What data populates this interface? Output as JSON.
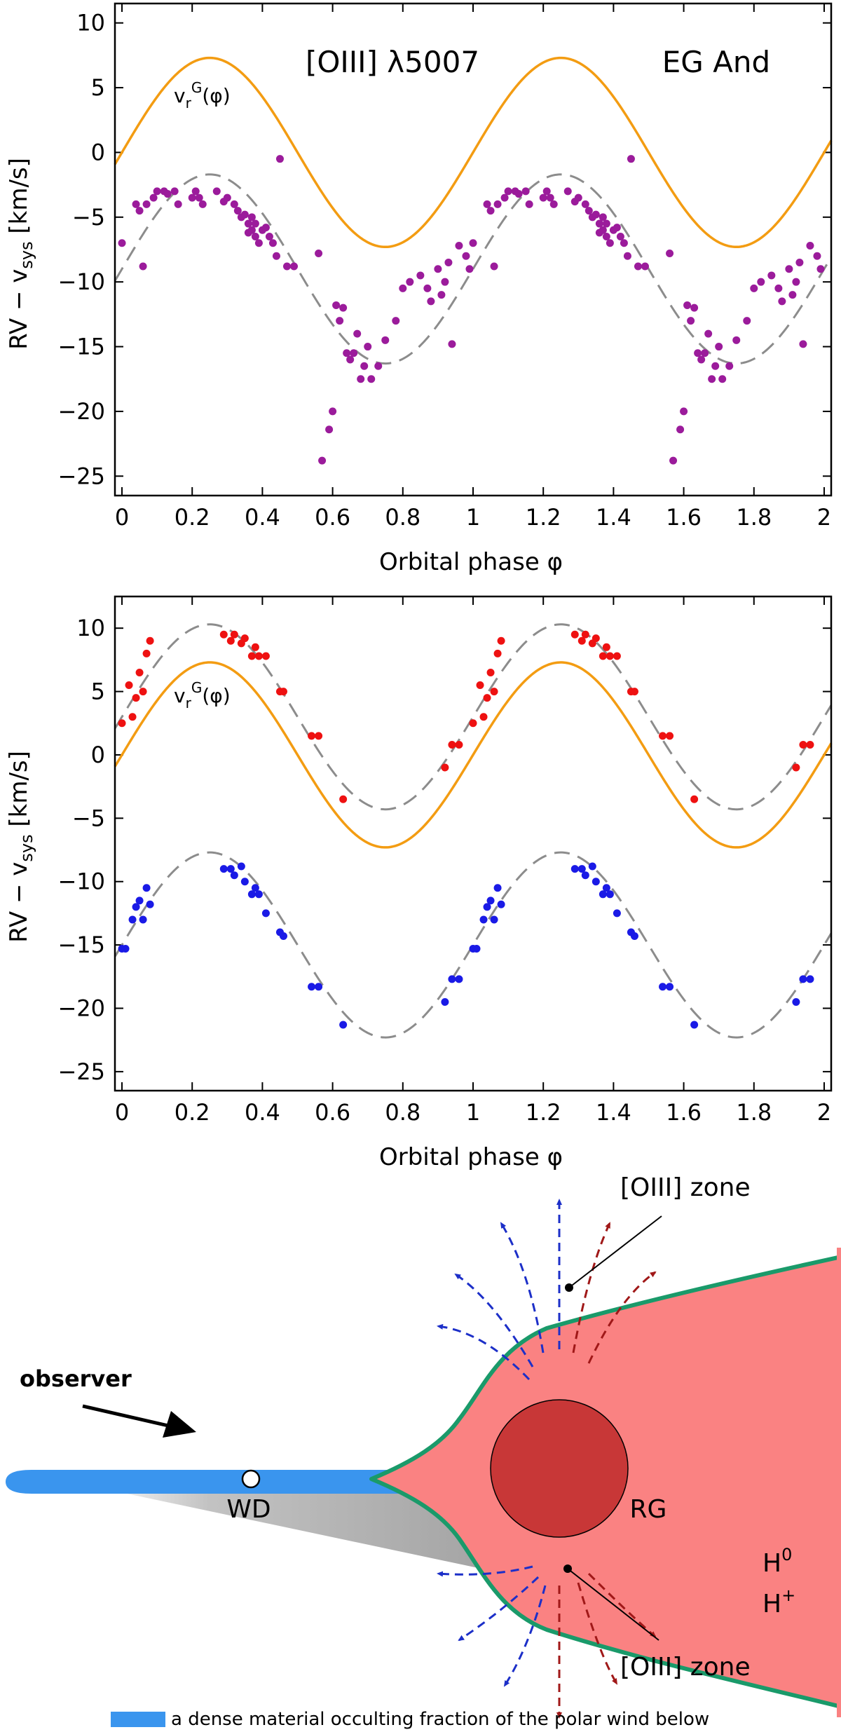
{
  "chart_data": [
    {
      "type": "scatter",
      "title": "[OIII] λ5007",
      "object_label": "EG And",
      "xlabel": "Orbital phase φ",
      "ylabel": "RV − v_sys [km/s]",
      "ylabel_parts": {
        "main": "RV − v",
        "sub": "sys",
        "unit": " [km/s]"
      },
      "xlim": [
        -0.02,
        2.02
      ],
      "ylim": [
        -26.5,
        11.5
      ],
      "xticks": [
        0,
        0.2,
        0.4,
        0.6,
        0.8,
        1,
        1.2,
        1.4,
        1.6,
        1.8,
        2
      ],
      "xtick_labels": [
        "0",
        "0.2",
        "0.4",
        "0.6",
        "0.8",
        "1",
        "1.2",
        "1.4",
        "1.6",
        "1.8",
        "2"
      ],
      "yticks": [
        10,
        5,
        0,
        -5,
        -10,
        -15,
        -20,
        -25
      ],
      "ytick_labels": [
        "10",
        "5",
        "0",
        "−5",
        "−10",
        "−15",
        "−20",
        "−25"
      ],
      "curve_label": {
        "base": "v",
        "sub": "r",
        "sup": "G",
        "arg": "(φ)"
      },
      "curves": [
        {
          "name": "giant orbit vrG(φ)",
          "style": "solid",
          "color": "#f39c12",
          "gamma": 0,
          "amplitude": 7.3
        },
        {
          "name": "fit",
          "style": "dashed",
          "color": "#8c8c8c",
          "gamma": -9.0,
          "amplitude": 7.3
        }
      ],
      "series": [
        {
          "name": "[OIII] λ5007",
          "color": "#9b1b9b",
          "x": [
            0.0,
            0.04,
            0.05,
            0.06,
            0.07,
            0.09,
            0.1,
            0.12,
            0.13,
            0.15,
            0.16,
            0.2,
            0.21,
            0.22,
            0.23,
            0.27,
            0.29,
            0.3,
            0.32,
            0.33,
            0.34,
            0.35,
            0.36,
            0.36,
            0.37,
            0.37,
            0.38,
            0.38,
            0.39,
            0.4,
            0.41,
            0.42,
            0.43,
            0.44,
            0.45,
            0.47,
            0.49,
            0.56,
            0.57,
            0.59,
            0.6,
            0.61,
            0.62,
            0.63,
            0.64,
            0.65,
            0.66,
            0.67,
            0.68,
            0.69,
            0.7,
            0.71,
            0.73,
            0.75,
            0.78,
            0.8,
            0.82,
            0.85,
            0.87,
            0.88,
            0.9,
            0.91,
            0.92,
            0.93,
            0.94,
            0.96,
            0.98,
            0.99
          ],
          "y": [
            -7.0,
            -4.0,
            -4.5,
            -8.8,
            -4.0,
            -3.5,
            -3.0,
            -3.0,
            -3.2,
            -3.0,
            -4.0,
            -3.5,
            -3.0,
            -3.5,
            -4.0,
            -3.0,
            -3.8,
            -3.5,
            -4.0,
            -4.5,
            -5.0,
            -4.8,
            -5.5,
            -6.2,
            -5.0,
            -6.0,
            -6.5,
            -5.5,
            -7.0,
            -6.0,
            -5.8,
            -6.5,
            -7.0,
            -8.0,
            -0.5,
            -8.8,
            -8.8,
            -7.8,
            -23.8,
            -21.4,
            -20.0,
            -11.8,
            -13.0,
            -12.0,
            -15.5,
            -16.0,
            -15.5,
            -14.0,
            -17.5,
            -16.5,
            -15.0,
            -17.5,
            -16.5,
            -14.5,
            -13.0,
            -10.5,
            -10.0,
            -9.5,
            -10.5,
            -11.5,
            -9.0,
            -11.0,
            -10.0,
            -8.5,
            -14.8,
            -7.2,
            -8.0,
            -9.0
          ]
        }
      ]
    },
    {
      "type": "scatter",
      "xlabel": "Orbital phase φ",
      "ylabel": "RV − v_sys [km/s]",
      "ylabel_parts": {
        "main": "RV − v",
        "sub": "sys",
        "unit": " [km/s]"
      },
      "xlim": [
        -0.02,
        2.02
      ],
      "ylim": [
        -26.5,
        12.5
      ],
      "xticks": [
        0,
        0.2,
        0.4,
        0.6,
        0.8,
        1,
        1.2,
        1.4,
        1.6,
        1.8,
        2
      ],
      "xtick_labels": [
        "0",
        "0.2",
        "0.4",
        "0.6",
        "0.8",
        "1",
        "1.2",
        "1.4",
        "1.6",
        "1.8",
        "2"
      ],
      "yticks": [
        10,
        5,
        0,
        -5,
        -10,
        -15,
        -20,
        -25
      ],
      "ytick_labels": [
        "10",
        "5",
        "0",
        "−5",
        "−10",
        "−15",
        "−20",
        "−25"
      ],
      "curve_label": {
        "base": "v",
        "sub": "r",
        "sup": "G",
        "arg": "(φ)"
      },
      "curves": [
        {
          "name": "giant orbit vrG(φ)",
          "style": "solid",
          "color": "#f39c12",
          "gamma": 0,
          "amplitude": 7.3
        },
        {
          "name": "red fit",
          "style": "dashed",
          "color": "#8c8c8c",
          "gamma": 3.0,
          "amplitude": 7.3
        },
        {
          "name": "blue fit",
          "style": "dashed",
          "color": "#8c8c8c",
          "gamma": -15.0,
          "amplitude": 7.3
        }
      ],
      "series": [
        {
          "name": "red component",
          "color": "#ee1111",
          "x": [
            0.0,
            0.02,
            0.03,
            0.04,
            0.05,
            0.06,
            0.07,
            0.08,
            0.29,
            0.31,
            0.32,
            0.34,
            0.35,
            0.37,
            0.38,
            0.39,
            0.41,
            0.45,
            0.46,
            0.54,
            0.56,
            0.63,
            0.92,
            0.94,
            0.96
          ],
          "y": [
            2.5,
            5.5,
            3.0,
            4.5,
            6.5,
            5.0,
            8.0,
            9.0,
            9.5,
            9.0,
            9.5,
            8.8,
            9.2,
            7.8,
            8.5,
            7.8,
            7.8,
            5.0,
            5.0,
            1.5,
            1.5,
            -3.5,
            -1.0,
            0.8,
            0.8
          ]
        },
        {
          "name": "blue component",
          "color": "#1a1ae6",
          "x": [
            0.0,
            0.01,
            0.03,
            0.04,
            0.05,
            0.06,
            0.07,
            0.08,
            0.29,
            0.31,
            0.32,
            0.34,
            0.35,
            0.37,
            0.38,
            0.39,
            0.41,
            0.45,
            0.46,
            0.54,
            0.56,
            0.63,
            0.92,
            0.94,
            0.96
          ],
          "y": [
            -15.3,
            -15.3,
            -13.0,
            -12.0,
            -11.5,
            -13.0,
            -10.5,
            -11.8,
            -9.0,
            -9.0,
            -9.5,
            -8.8,
            -10.0,
            -11.0,
            -10.5,
            -11.0,
            -12.5,
            -14.0,
            -14.3,
            -18.3,
            -18.3,
            -21.3,
            -19.5,
            -17.7,
            -17.7
          ]
        }
      ]
    }
  ],
  "sketch": {
    "observer_label": "observer",
    "wd_label": "WD",
    "rg_label": "RG",
    "oiii_zone_top_label": "[OIII] zone",
    "oiii_zone_bottom_label": "[OIII] zone",
    "h_neutral_label": {
      "base": "H",
      "sup": "0"
    },
    "h_ionized_label": {
      "base": "H",
      "sup": "+"
    },
    "legend_text": "a dense material occulting fraction of the polar wind below",
    "colors": {
      "wind_fill": "#fa8282",
      "wind_edge": "#1a9a6a",
      "giant": "#c83737",
      "disk": "#3a95ee",
      "shadow": "#9a9a9a",
      "blue_flow": "#1c2fc8",
      "red_flow": "#a01818"
    }
  }
}
